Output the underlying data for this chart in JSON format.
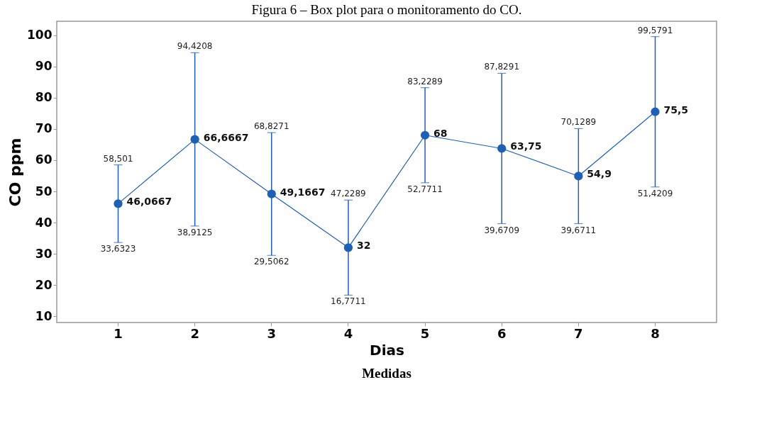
{
  "chart_data": {
    "type": "line",
    "title": "Figura 6 – Box plot para o monitoramento do CO.",
    "xlabel": "Dias",
    "ylabel": "CO ppm",
    "categories": [
      "1",
      "2",
      "3",
      "4",
      "5",
      "6",
      "7",
      "8"
    ],
    "series": [
      {
        "color": "#1f5fb4",
        "values": [
          46.0667,
          66.6667,
          49.1667,
          32,
          68,
          63.75,
          54.9,
          75.5
        ],
        "value_labels": [
          "46,0667",
          "66,6667",
          "49,1667",
          "32",
          "68",
          "63,75",
          "54,9",
          "75,5"
        ],
        "errors": [
          [
            33.6323,
            58.501
          ],
          [
            38.9125,
            94.4208
          ],
          [
            29.5062,
            68.8271
          ],
          [
            16.7711,
            47.2289
          ],
          [
            52.7711,
            83.2289
          ],
          [
            39.6709,
            87.8291
          ],
          [
            39.6711,
            70.1289
          ],
          [
            51.4209,
            99.5791
          ]
        ]
      }
    ],
    "ylim": [
      8,
      104.5
    ],
    "yticks": [
      10,
      20,
      30,
      40,
      50,
      60,
      70,
      80,
      90,
      100
    ],
    "grid": false,
    "marker": "circle",
    "annotations": [
      {
        "text": "58,501",
        "x": "1",
        "y": 58.501
      },
      {
        "text": "33,6323",
        "x": "1",
        "y": 33.6323
      },
      {
        "text": "94,4208",
        "x": "2",
        "y": 94.4208
      },
      {
        "text": "38,9125",
        "x": "2",
        "y": 38.9125
      },
      {
        "text": "68,8271",
        "x": "3",
        "y": 68.8271
      },
      {
        "text": "29,5062",
        "x": "3",
        "y": 29.5062
      },
      {
        "text": "47,2289",
        "x": "4",
        "y": 47.2289
      },
      {
        "text": "16,7711",
        "x": "4",
        "y": 16.7711
      },
      {
        "text": "83,2289",
        "x": "5",
        "y": 83.2289
      },
      {
        "text": "52,7711",
        "x": "5",
        "y": 52.7711
      },
      {
        "text": "87,8291",
        "x": "6",
        "y": 87.8291
      },
      {
        "text": "39,6709",
        "x": "6",
        "y": 39.6709
      },
      {
        "text": "70,1289",
        "x": "7",
        "y": 70.1289
      },
      {
        "text": "39,6711",
        "x": "7",
        "y": 39.6711
      },
      {
        "text": "99,5791",
        "x": "8",
        "y": 99.5791
      },
      {
        "text": "51,4209",
        "x": "8",
        "y": 51.4209
      },
      "Medidas"
    ]
  }
}
